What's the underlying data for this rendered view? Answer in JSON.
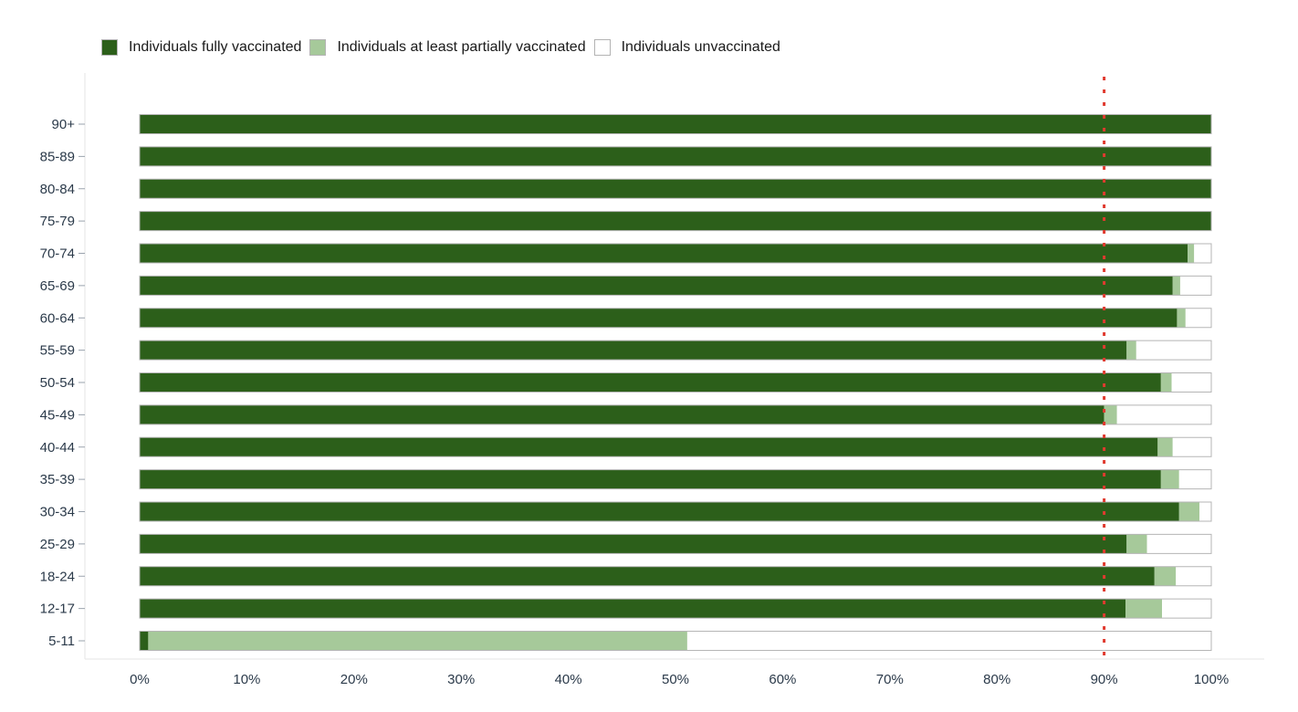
{
  "chart_data": {
    "type": "bar",
    "orientation": "horizontal",
    "stacked": true,
    "title": "",
    "xlabel": "",
    "ylabel": "",
    "xlim": [
      0,
      100
    ],
    "x_ticks": [
      "0%",
      "10%",
      "20%",
      "30%",
      "40%",
      "50%",
      "60%",
      "70%",
      "80%",
      "90%",
      "100%"
    ],
    "grid": false,
    "legend_position": "top-left",
    "reference_line": {
      "value": 90,
      "style": "dotted",
      "color": "#e03a2f"
    },
    "categories": [
      "90+",
      "85-89",
      "80-84",
      "75-79",
      "70-74",
      "65-69",
      "60-64",
      "55-59",
      "50-54",
      "45-49",
      "40-44",
      "35-39",
      "30-34",
      "25-29",
      "18-24",
      "12-17",
      "5-11"
    ],
    "series": [
      {
        "name": "Individuals fully vaccinated",
        "color": "#2c5f1a",
        "values": [
          100,
          100,
          100,
          100,
          97.8,
          96.4,
          96.8,
          92.1,
          95.3,
          90.0,
          95.0,
          95.3,
          97.0,
          92.1,
          94.7,
          92.0,
          0.8
        ]
      },
      {
        "name": "Individuals at least partially vaccinated",
        "color": "#a6c99a",
        "values": [
          0,
          0,
          0,
          0,
          0.6,
          0.7,
          0.8,
          0.9,
          1.0,
          1.2,
          1.4,
          1.7,
          1.9,
          1.9,
          2.0,
          3.4,
          50.3
        ]
      },
      {
        "name": "Individuals unvaccinated",
        "color": "#ffffff",
        "values": [
          0,
          0,
          0,
          0,
          1.6,
          2.9,
          2.4,
          7.0,
          3.7,
          8.8,
          3.6,
          3.0,
          1.1,
          6.0,
          3.3,
          4.6,
          48.9
        ]
      }
    ]
  }
}
